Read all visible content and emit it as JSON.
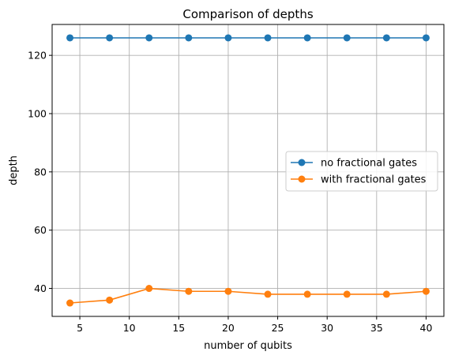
{
  "chart_data": {
    "type": "line",
    "title": "Comparison of depths",
    "xlabel": "number of qubits",
    "ylabel": "depth",
    "x": [
      4,
      8,
      12,
      16,
      20,
      24,
      28,
      32,
      36,
      40
    ],
    "series": [
      {
        "name": "no fractional gates",
        "color": "#1f77b4",
        "values": [
          126,
          126,
          126,
          126,
          126,
          126,
          126,
          126,
          126,
          126
        ]
      },
      {
        "name": "with fractional gates",
        "color": "#ff7f0e",
        "values": [
          35,
          36,
          40,
          39,
          39,
          38,
          38,
          38,
          38,
          39
        ]
      }
    ],
    "xlim": [
      2.2,
      41.8
    ],
    "ylim": [
      30.4,
      130.6
    ],
    "xticks": [
      5,
      10,
      15,
      20,
      25,
      30,
      35,
      40
    ],
    "yticks": [
      40,
      60,
      80,
      100,
      120
    ],
    "grid": true,
    "legend": "center-right",
    "marker": "circle"
  }
}
